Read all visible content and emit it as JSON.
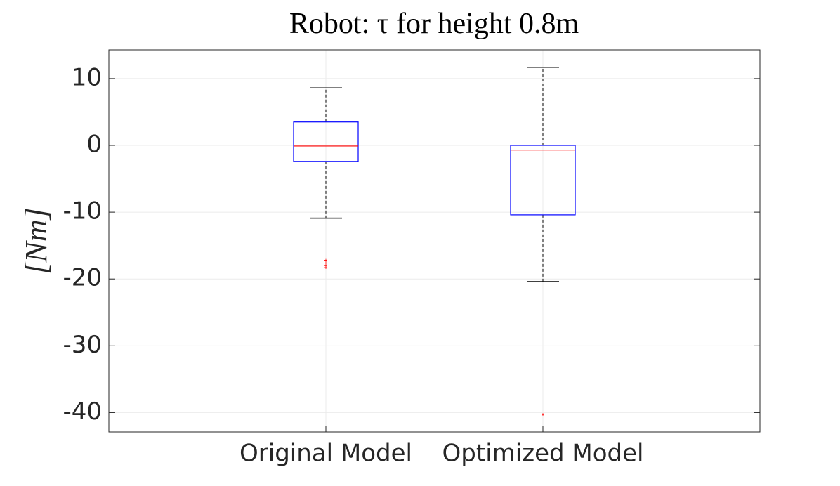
{
  "chart_data": {
    "type": "box",
    "title": "Robot: τ for height 0.8m",
    "y_label": "[Nm]",
    "categories": [
      "Original Model",
      "Optimized Model"
    ],
    "boxes": [
      {
        "whisker_low": -10.9,
        "q1": -2.4,
        "median": -0.1,
        "q3": 3.5,
        "whisker_high": 8.6,
        "outliers": [
          -17.2,
          -17.6,
          -18.0,
          -18.3
        ]
      },
      {
        "whisker_low": -20.4,
        "q1": -10.4,
        "median": -0.7,
        "q3": 0,
        "whisker_high": 11.7,
        "outliers": [
          -40.3
        ]
      }
    ],
    "box_color": "#0000ff",
    "median_color": "#ff0000",
    "whisker_color": "#000000",
    "outlier_color": "#ff0000",
    "ylim": [
      -42.9,
      14.3
    ],
    "yticks": [
      -40,
      -30,
      -20,
      -10,
      0,
      10
    ],
    "grid": true
  }
}
